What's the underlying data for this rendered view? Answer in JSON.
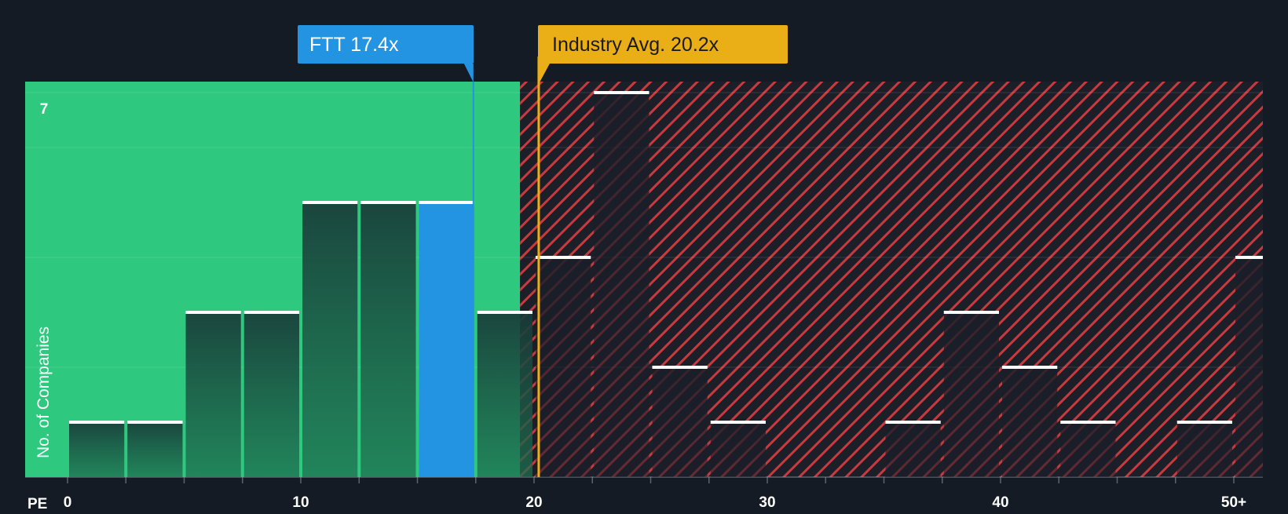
{
  "chart_data": {
    "type": "histogram",
    "xlabel": "PE",
    "ylabel": "No. of Companies",
    "y_max_label": "7",
    "ylim": [
      0,
      7.2
    ],
    "xlim": [
      0,
      51.5
    ],
    "x_ticks": [
      {
        "value": 0,
        "label": "0"
      },
      {
        "value": 10,
        "label": "10"
      },
      {
        "value": 20,
        "label": "20"
      },
      {
        "value": 30,
        "label": "30"
      },
      {
        "value": 40,
        "label": "40"
      },
      {
        "value": 50,
        "label": "50+"
      }
    ],
    "bins": [
      {
        "start": 0,
        "end": 2.5,
        "count": 1
      },
      {
        "start": 2.5,
        "end": 5,
        "count": 1
      },
      {
        "start": 5,
        "end": 7.5,
        "count": 3
      },
      {
        "start": 7.5,
        "end": 10,
        "count": 3
      },
      {
        "start": 10,
        "end": 12.5,
        "count": 5
      },
      {
        "start": 12.5,
        "end": 15,
        "count": 5
      },
      {
        "start": 15,
        "end": 17.5,
        "count": 5,
        "highlight": true
      },
      {
        "start": 17.5,
        "end": 20,
        "count": 3
      },
      {
        "start": 20,
        "end": 22.5,
        "count": 4
      },
      {
        "start": 22.5,
        "end": 25,
        "count": 7
      },
      {
        "start": 25,
        "end": 27.5,
        "count": 2
      },
      {
        "start": 27.5,
        "end": 30,
        "count": 1
      },
      {
        "start": 30,
        "end": 32.5,
        "count": 0
      },
      {
        "start": 32.5,
        "end": 35,
        "count": 0
      },
      {
        "start": 35,
        "end": 37.5,
        "count": 1
      },
      {
        "start": 37.5,
        "end": 40,
        "count": 3
      },
      {
        "start": 40,
        "end": 42.5,
        "count": 2
      },
      {
        "start": 42.5,
        "end": 45,
        "count": 1
      },
      {
        "start": 45,
        "end": 47.5,
        "count": 0
      },
      {
        "start": 47.5,
        "end": 50,
        "count": 1
      },
      {
        "start": 50,
        "end": 52.5,
        "count": 4
      }
    ],
    "fair_zone_end": 19.4,
    "company": {
      "label": "FTT 17.4x",
      "value": 17.4
    },
    "industry": {
      "label": "Industry Avg. 20.2x",
      "value": 20.2
    },
    "colors": {
      "background": "#151b24",
      "fair": "#2ec97f",
      "overvalued_stripe": "#c93a3f",
      "company": "#2394e2",
      "industry": "#eaae16",
      "bar_dark": "#1a2a2e"
    }
  }
}
